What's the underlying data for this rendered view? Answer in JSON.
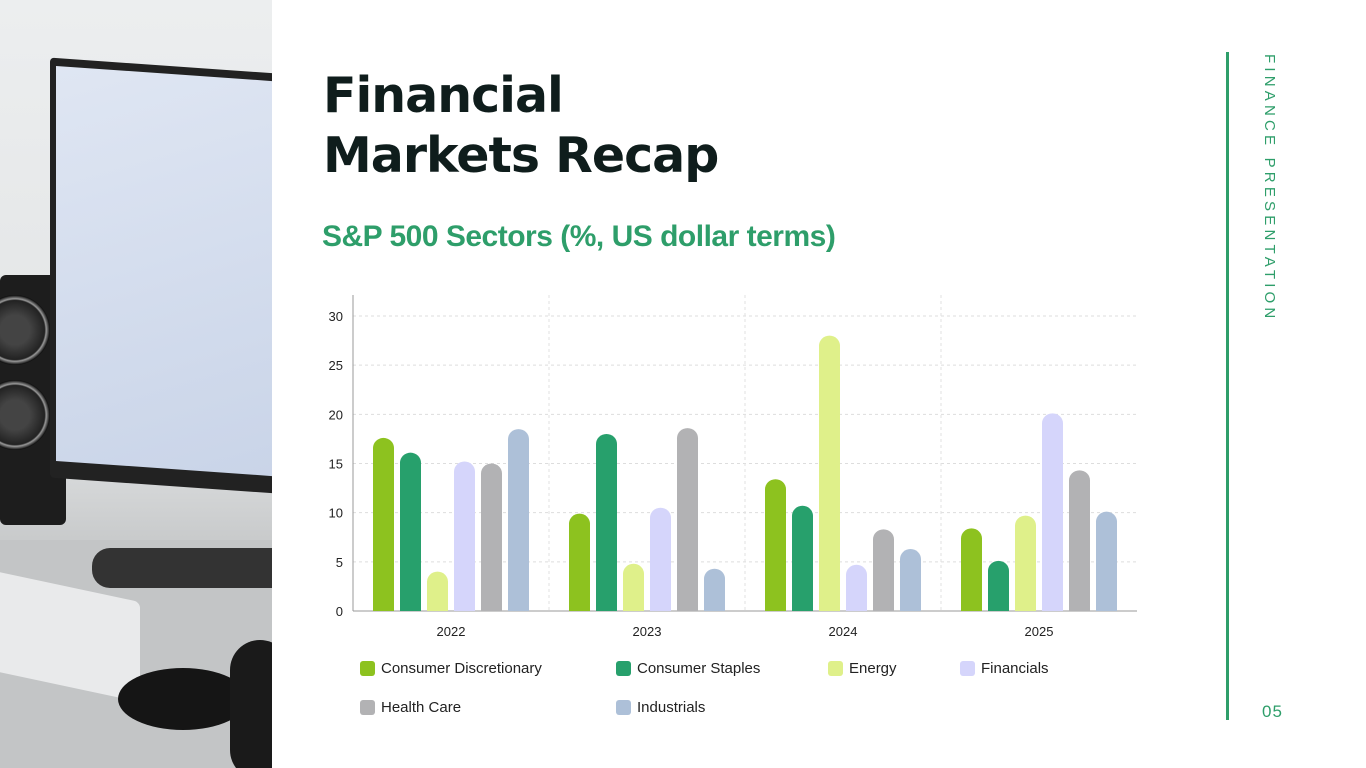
{
  "title_line1": "Financial",
  "title_line2": "Markets Recap",
  "subtitle": "S&P 500 Sectors (%, US dollar terms)",
  "side_label": "FINANCE PRESENTATION",
  "page_number": "05",
  "colors": {
    "accent": "#2e9e6a"
  },
  "chart_data": {
    "type": "bar",
    "title": "S&P 500 Sectors (%, US dollar terms)",
    "xlabel": "",
    "ylabel": "",
    "categories": [
      "2022",
      "2023",
      "2024",
      "2025"
    ],
    "ylim": [
      0,
      30
    ],
    "yticks": [
      "0",
      "5",
      "10",
      "15",
      "20",
      "25",
      "30"
    ],
    "grid": true,
    "legend_position": "bottom",
    "series": [
      {
        "name": "Consumer Discretionary",
        "color": "#8dc21f",
        "values": [
          17.6,
          9.9,
          13.4,
          8.4
        ]
      },
      {
        "name": "Consumer Staples",
        "color": "#27a06c",
        "values": [
          16.1,
          18.0,
          10.7,
          5.1
        ]
      },
      {
        "name": "Energy",
        "color": "#dff08a",
        "values": [
          4.0,
          4.8,
          28.0,
          9.7
        ]
      },
      {
        "name": "Financials",
        "color": "#d5d5fb",
        "values": [
          15.2,
          10.5,
          4.7,
          20.1
        ]
      },
      {
        "name": "Health Care",
        "color": "#b2b2b4",
        "values": [
          15.0,
          18.6,
          8.3,
          14.3
        ]
      },
      {
        "name": "Industrials",
        "color": "#adc0d8",
        "values": [
          18.5,
          4.3,
          6.3,
          10.1
        ]
      }
    ]
  }
}
